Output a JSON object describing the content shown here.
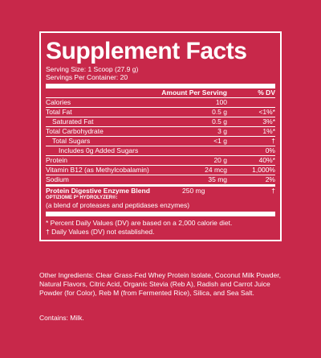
{
  "title": "Supplement Facts",
  "serving_size": "Serving Size: 1 Scoop (27.9 g)",
  "servings_per_container": "Servings Per Container: 20",
  "header": {
    "amount": "Amount Per Serving",
    "dv": "% DV"
  },
  "rows": [
    {
      "name": "Calories",
      "amount": "100",
      "dv": ""
    },
    {
      "name": "Total Fat",
      "amount": "0.5 g",
      "dv": "<1%*"
    },
    {
      "name": "Saturated Fat",
      "amount": "0.5 g",
      "dv": "3%*"
    },
    {
      "name": "Total Carbohydrate",
      "amount": "3 g",
      "dv": "1%*"
    },
    {
      "name": "Total Sugars",
      "amount": "<1 g",
      "dv": "†"
    },
    {
      "name": "Includes 0g Added Sugars",
      "amount": "",
      "dv": "0%"
    },
    {
      "name": "Protein",
      "amount": "20 g",
      "dv": "40%*"
    },
    {
      "name": "Vitamin B12 (as Methylcobalamin)",
      "amount": "24 mcg",
      "dv": "1,000%"
    },
    {
      "name": "Sodium",
      "amount": "35 mg",
      "dv": "2%"
    }
  ],
  "blend": {
    "name": "Protein Digestive Enzyme Blend",
    "amount": "250 mg",
    "dv": "†",
    "brand": "OPTIZIOME P³ HYDROLYZER®:",
    "description": "(a blend of proteases and peptidases enzymes)"
  },
  "footnotes": {
    "dv_note": "* Percent Daily Values (DV) are based on a 2,000 calorie diet.",
    "not_established": "† Daily Values (DV) not established."
  },
  "other_ingredients": "Other Ingredients: Clear Grass-Fed Whey Protein Isolate, Coconut Milk Powder, Natural Flavors, Citric Acid, Organic Stevia (Reb A), Radish and Carrot Juice Powder (for Color), Reb M (from Fermented Rice), Silica, and Sea Salt.",
  "contains": "Contains: Milk.",
  "colors": {
    "background": "#c8284a",
    "text": "#ffffff"
  }
}
